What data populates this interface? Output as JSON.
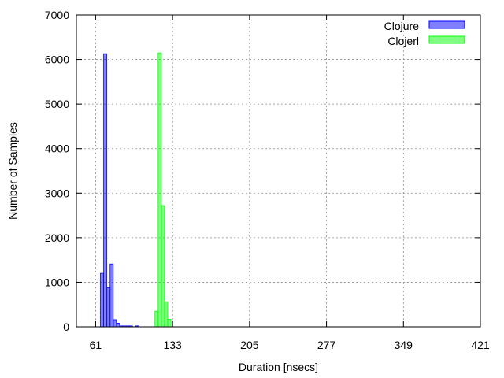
{
  "chart_data": {
    "type": "bar",
    "xlabel": "Duration [nsecs]",
    "ylabel": "Number of Samples",
    "xlim": [
      43,
      421
    ],
    "ylim": [
      0,
      7000
    ],
    "x_ticks": [
      61,
      133,
      205,
      277,
      349,
      421
    ],
    "y_ticks": [
      0,
      1000,
      2000,
      3000,
      4000,
      5000,
      6000,
      7000
    ],
    "grid": true,
    "legend_position": "top-right",
    "bin_width": 3,
    "series": [
      {
        "name": "Clojure",
        "color": "#0000ff",
        "bins": [
          {
            "x": 67,
            "y": 1200
          },
          {
            "x": 70,
            "y": 6130
          },
          {
            "x": 73,
            "y": 880
          },
          {
            "x": 76,
            "y": 1410
          },
          {
            "x": 79,
            "y": 160
          },
          {
            "x": 82,
            "y": 80
          },
          {
            "x": 85,
            "y": 20
          },
          {
            "x": 88,
            "y": 20
          },
          {
            "x": 91,
            "y": 20
          },
          {
            "x": 94,
            "y": 20
          },
          {
            "x": 100,
            "y": 20
          }
        ]
      },
      {
        "name": "Clojerl",
        "color": "#00ff00",
        "bins": [
          {
            "x": 118,
            "y": 350
          },
          {
            "x": 121,
            "y": 6150
          },
          {
            "x": 124,
            "y": 2720
          },
          {
            "x": 127,
            "y": 560
          },
          {
            "x": 130,
            "y": 170
          }
        ]
      }
    ]
  }
}
